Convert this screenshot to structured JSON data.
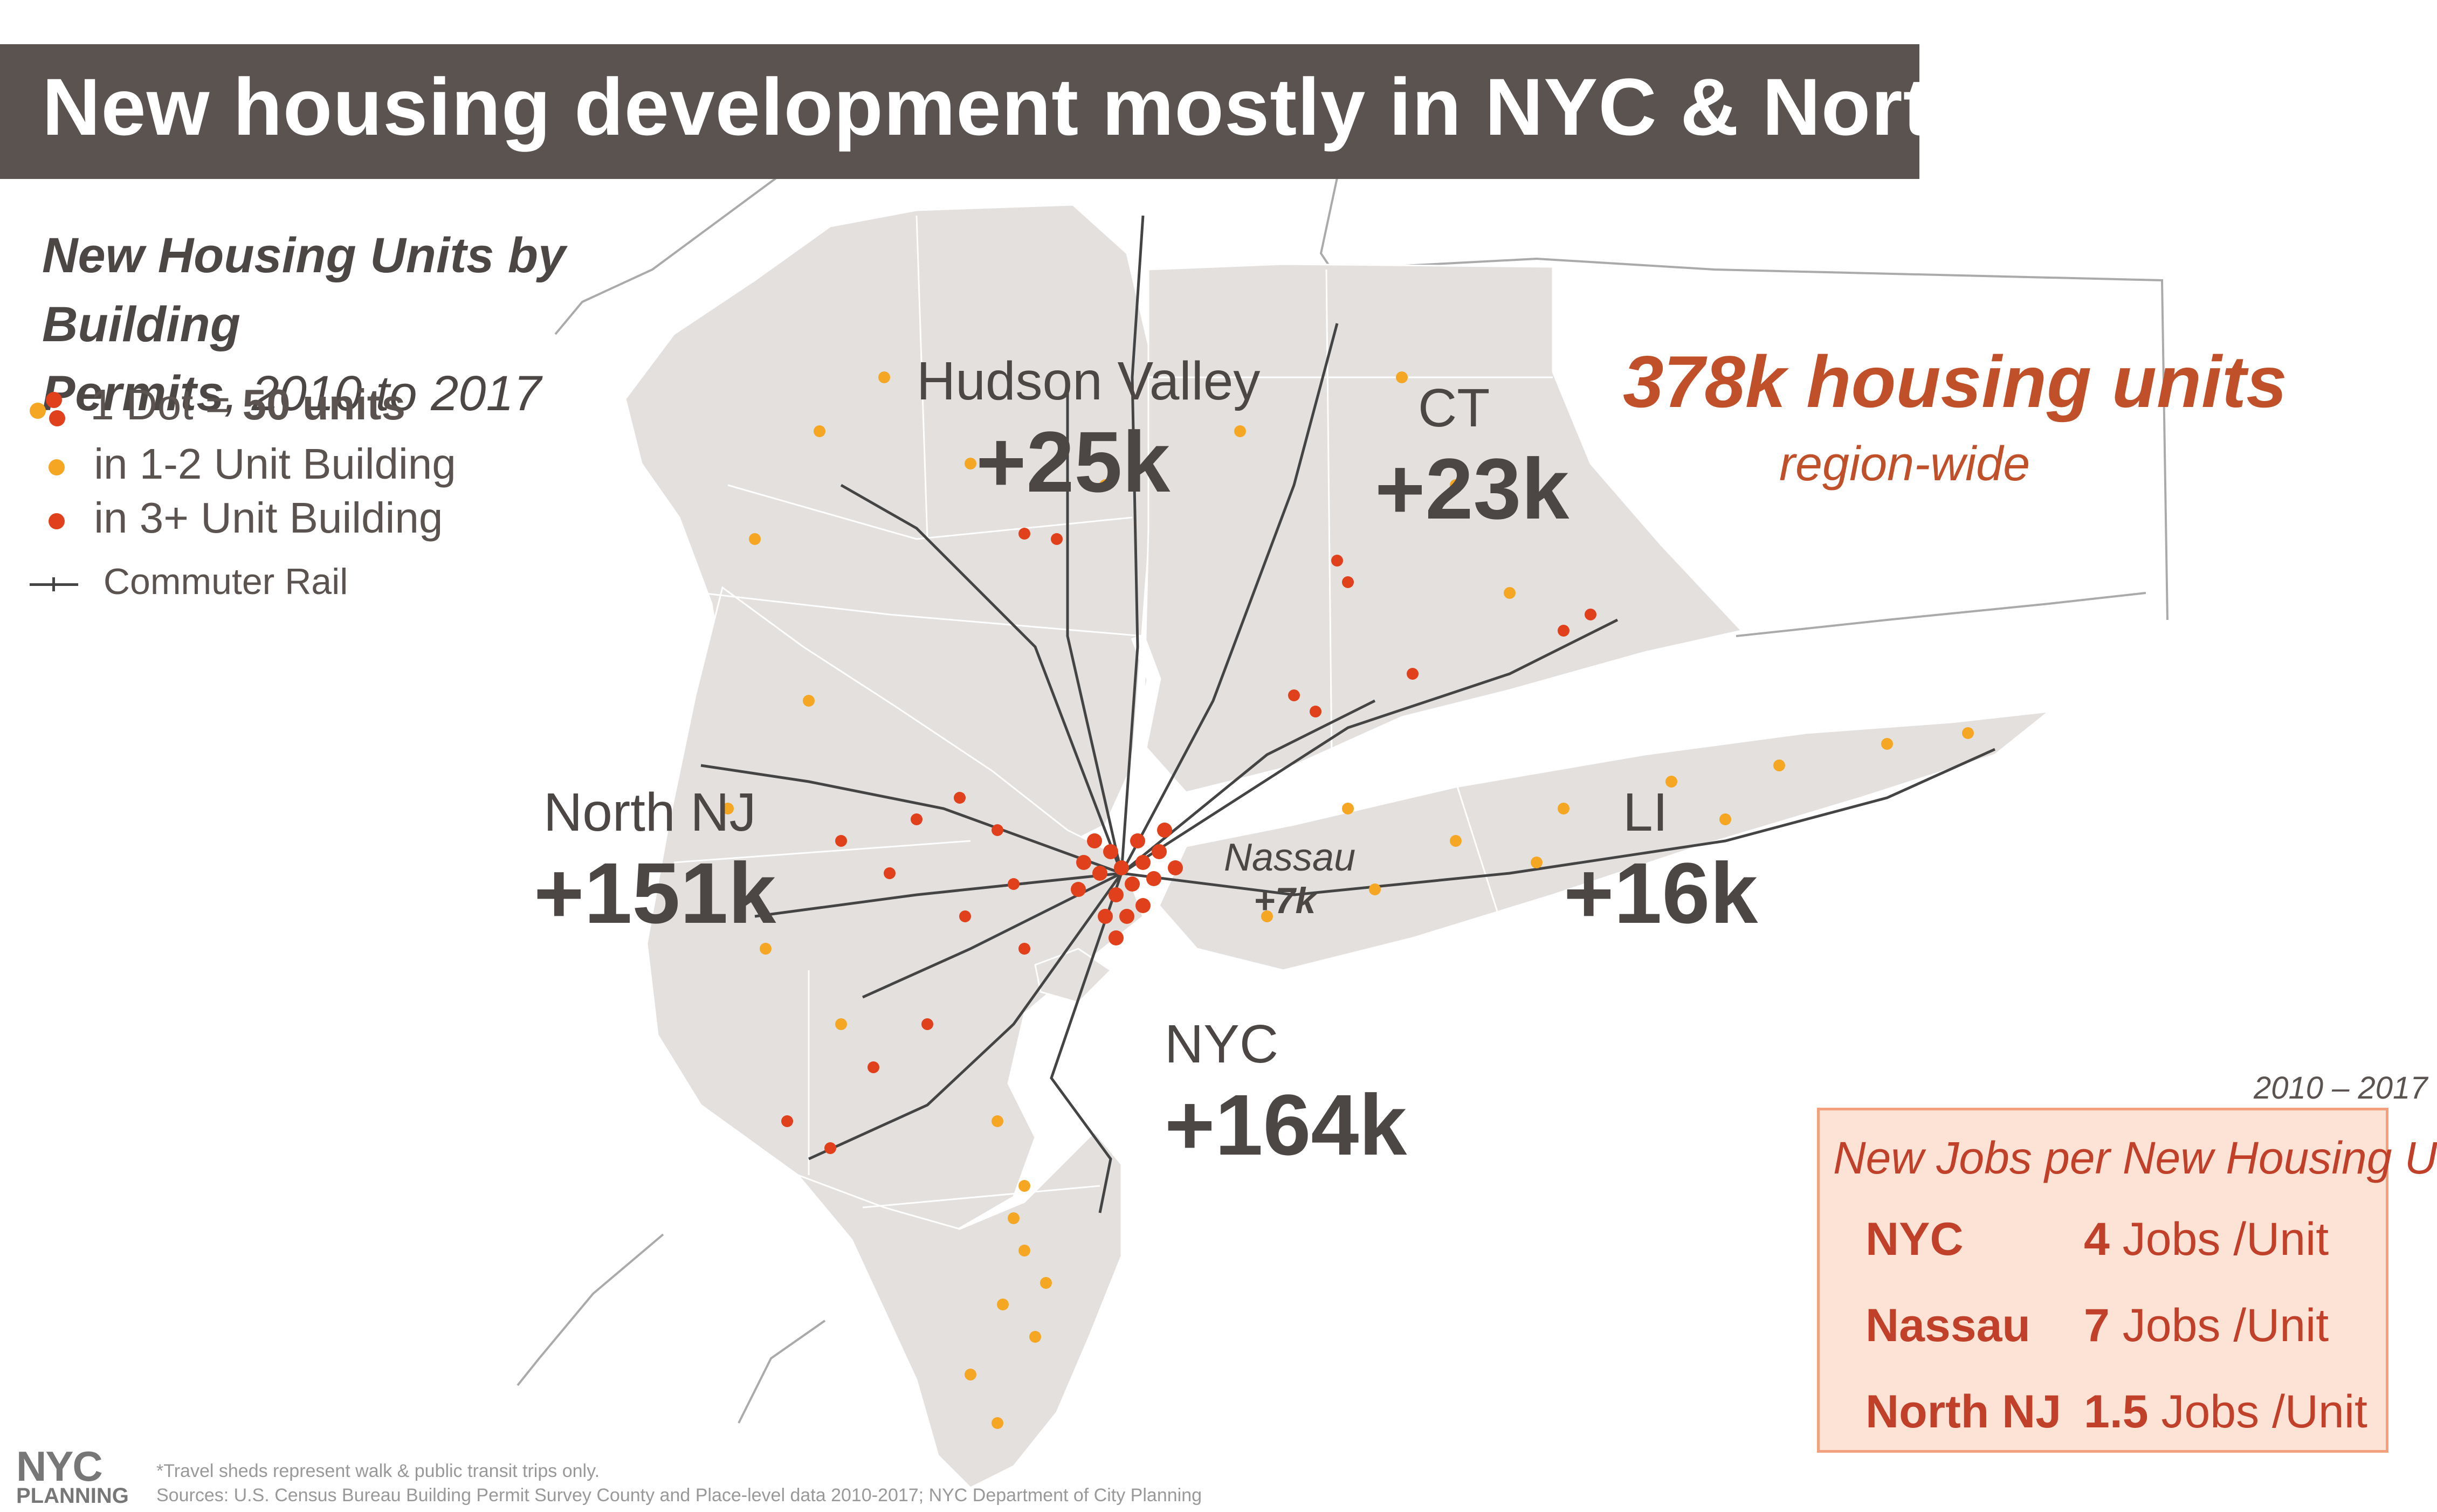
{
  "title": "New housing development mostly in NYC & North NJ",
  "legend": {
    "title_bold_1": "New Housing Units by Building",
    "title_bold_2": "Permits",
    "title_rest": ", 2010 to 2017",
    "dot_prefix": "1 Dot = ",
    "dot_value": "50 units",
    "small_building": "in 1-2 Unit Building",
    "large_building": "in 3+ Unit Building",
    "rail": "Commuter Rail"
  },
  "colors": {
    "small_building_dot": "#f5a623",
    "large_building_dot": "#e0401b",
    "land": "#e3e0de",
    "banner": "#5a534f",
    "accent": "#c0502a"
  },
  "regions": [
    {
      "name": "Hudson Valley",
      "value": "+25k"
    },
    {
      "name": "CT",
      "value": "+23k"
    },
    {
      "name": "North NJ",
      "value": "+151k"
    },
    {
      "name": "LI",
      "value": "+16k"
    },
    {
      "name": "Nassau",
      "value": "+7k"
    },
    {
      "name": "NYC",
      "value": "+164k"
    }
  ],
  "headline": {
    "value": "378k housing units",
    "sub": "region-wide"
  },
  "jobs_table": {
    "period": "2010 – 2017",
    "title": "New Jobs per New Housing Unit",
    "rows": [
      {
        "place": "NYC",
        "value": "4",
        "unit": " Jobs /Unit"
      },
      {
        "place": "Nassau",
        "value": "7",
        "unit": " Jobs /Unit"
      },
      {
        "place": "North NJ",
        "value": "1.5",
        "unit": " Jobs /Unit"
      }
    ]
  },
  "logo": {
    "top": "NYC",
    "bottom": "PLANNING"
  },
  "notes": {
    "footnote": "*Travel sheds represent walk & public transit trips only.",
    "sources": "Sources: U.S. Census Bureau Building Permit Survey County and Place-level data 2010-2017; NYC Department of City Planning"
  }
}
